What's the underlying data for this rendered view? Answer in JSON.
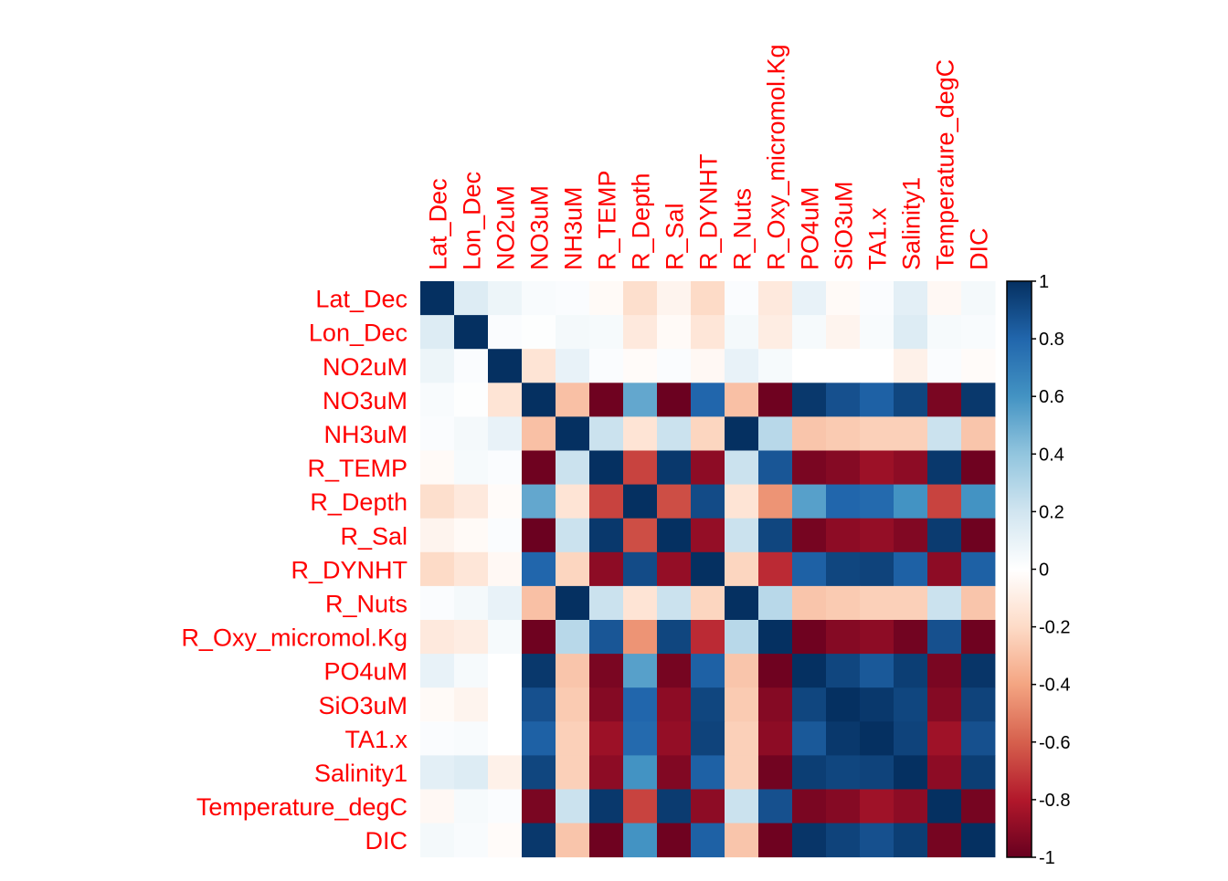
{
  "chart_data": {
    "type": "heatmap",
    "title": "",
    "variables": [
      "Lat_Dec",
      "Lon_Dec",
      "NO2uM",
      "NO3uM",
      "NH3uM",
      "R_TEMP",
      "R_Depth",
      "R_Sal",
      "R_DYNHT",
      "R_Nuts",
      "R_Oxy_micromol.Kg",
      "PO4uM",
      "SiO3uM",
      "TA1.x",
      "Salinity1",
      "Temperature_degC",
      "DIC"
    ],
    "matrix": [
      [
        1.0,
        0.15,
        0.08,
        0.03,
        0.02,
        -0.03,
        -0.18,
        -0.06,
        -0.2,
        0.02,
        -0.12,
        0.1,
        -0.03,
        0.02,
        0.12,
        -0.04,
        0.05
      ],
      [
        0.15,
        1.0,
        0.02,
        0.01,
        0.05,
        0.04,
        -0.12,
        -0.03,
        -0.14,
        0.05,
        -0.1,
        0.04,
        -0.06,
        0.03,
        0.15,
        0.04,
        0.03
      ],
      [
        0.08,
        0.02,
        1.0,
        -0.15,
        0.1,
        0.02,
        -0.02,
        0.02,
        -0.04,
        0.1,
        0.04,
        0.0,
        0.0,
        0.0,
        -0.08,
        0.02,
        -0.02
      ],
      [
        0.03,
        0.01,
        -0.15,
        1.0,
        -0.3,
        -0.98,
        0.52,
        -0.99,
        0.8,
        -0.3,
        -0.98,
        0.97,
        0.88,
        0.82,
        0.92,
        -0.95,
        0.97
      ],
      [
        0.02,
        0.05,
        0.1,
        -0.3,
        1.0,
        0.22,
        -0.15,
        0.22,
        -0.22,
        1.0,
        0.28,
        -0.28,
        -0.26,
        -0.24,
        -0.24,
        0.22,
        -0.28
      ],
      [
        -0.03,
        0.04,
        0.02,
        -0.98,
        0.22,
        1.0,
        -0.68,
        0.97,
        -0.9,
        0.22,
        0.86,
        -0.95,
        -0.92,
        -0.86,
        -0.9,
        0.97,
        -0.98
      ],
      [
        -0.18,
        -0.12,
        -0.02,
        0.52,
        -0.15,
        -0.68,
        1.0,
        -0.65,
        0.9,
        -0.15,
        -0.45,
        0.55,
        0.8,
        0.78,
        0.6,
        -0.68,
        0.6
      ],
      [
        -0.06,
        -0.03,
        0.02,
        -0.99,
        0.22,
        0.97,
        -0.65,
        1.0,
        -0.88,
        0.22,
        0.92,
        -0.96,
        -0.9,
        -0.88,
        -0.93,
        0.96,
        -0.98
      ],
      [
        -0.2,
        -0.14,
        -0.04,
        0.8,
        -0.22,
        -0.9,
        0.9,
        -0.88,
        1.0,
        -0.22,
        -0.75,
        0.82,
        0.92,
        0.93,
        0.82,
        -0.9,
        0.82
      ],
      [
        0.02,
        0.05,
        0.1,
        -0.3,
        1.0,
        0.22,
        -0.15,
        0.22,
        -0.22,
        1.0,
        0.28,
        -0.28,
        -0.26,
        -0.24,
        -0.24,
        0.22,
        -0.28
      ],
      [
        -0.12,
        -0.1,
        0.04,
        -0.98,
        0.28,
        0.86,
        -0.45,
        0.92,
        -0.75,
        0.28,
        1.0,
        -0.98,
        -0.92,
        -0.9,
        -0.97,
        0.88,
        -0.98
      ],
      [
        0.1,
        0.04,
        0.0,
        0.97,
        -0.28,
        -0.95,
        0.55,
        -0.96,
        0.82,
        -0.28,
        -0.98,
        1.0,
        0.92,
        0.85,
        0.95,
        -0.95,
        0.98
      ],
      [
        -0.03,
        -0.06,
        0.0,
        0.88,
        -0.26,
        -0.92,
        0.8,
        -0.9,
        0.92,
        -0.26,
        -0.92,
        0.92,
        1.0,
        0.97,
        0.92,
        -0.92,
        0.93
      ],
      [
        0.02,
        0.03,
        0.0,
        0.82,
        -0.24,
        -0.86,
        0.78,
        -0.88,
        0.93,
        -0.24,
        -0.9,
        0.85,
        0.97,
        1.0,
        0.93,
        -0.85,
        0.88
      ],
      [
        0.12,
        0.15,
        -0.08,
        0.92,
        -0.24,
        -0.9,
        0.6,
        -0.93,
        0.82,
        -0.24,
        -0.97,
        0.95,
        0.92,
        0.93,
        1.0,
        -0.9,
        0.95
      ],
      [
        -0.04,
        0.04,
        0.02,
        -0.95,
        0.22,
        0.97,
        -0.68,
        0.96,
        -0.9,
        0.22,
        0.88,
        -0.95,
        -0.92,
        -0.85,
        -0.9,
        1.0,
        -0.96
      ],
      [
        0.05,
        0.03,
        -0.02,
        0.97,
        -0.28,
        -0.98,
        0.6,
        -0.98,
        0.82,
        -0.28,
        -0.98,
        0.98,
        0.93,
        0.88,
        0.95,
        -0.96,
        1.0
      ]
    ],
    "colorbar": {
      "min": -1,
      "max": 1,
      "ticks": [
        1,
        0.8,
        0.6,
        0.4,
        0.2,
        0,
        -0.2,
        -0.4,
        -0.6,
        -0.8,
        -1
      ],
      "tick_labels": [
        "1",
        "0.8",
        "0.6",
        "0.4",
        "0.2",
        "0",
        "-0.2",
        "-0.4",
        "-0.6",
        "-0.8",
        "-1"
      ],
      "colors": [
        "#67001F",
        "#B2182B",
        "#D6604D",
        "#F4A582",
        "#FDDBC7",
        "#FFFFFF",
        "#D1E5F0",
        "#92C5DE",
        "#4393C3",
        "#2166AC",
        "#053061"
      ]
    },
    "label_color": "#FF0000",
    "grid": false,
    "legend": "right"
  }
}
